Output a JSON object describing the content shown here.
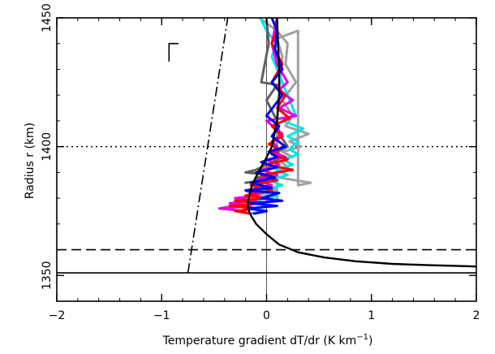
{
  "chart_data": {
    "type": "line",
    "xlabel": "Temperature gradient dT/dr (K km",
    "xlabel_unit_sup": "−1",
    "xlabel_close": ")",
    "ylabel": "Radius r (km)",
    "xlim": [
      -2,
      2
    ],
    "ylim": [
      1340,
      1450
    ],
    "x_ticks": [
      -2,
      -1,
      0,
      1,
      2
    ],
    "x_tick_labels": [
      "−2",
      "−1",
      "0",
      "1",
      "2"
    ],
    "y_ticks": [
      1350,
      1400,
      1450
    ],
    "y_tick_labels": [
      "1350",
      "1400",
      "1450"
    ],
    "grid": false,
    "legend": "none",
    "reference_lines": [
      {
        "name": "vertical-zero",
        "orientation": "vertical",
        "x": 0,
        "style": "solid",
        "color": "#555555"
      },
      {
        "name": "horizontal-1400",
        "orientation": "horizontal",
        "y": 1400,
        "style": "dotted",
        "color": "#000000"
      },
      {
        "name": "horizontal-1360",
        "orientation": "horizontal",
        "y": 1360,
        "style": "dashed",
        "color": "#000000"
      },
      {
        "name": "horizontal-1351",
        "orientation": "horizontal",
        "y": 1351,
        "style": "solid",
        "color": "#000000"
      }
    ],
    "dash_dot_line": {
      "x": [
        -0.75,
        -0.37
      ],
      "y": [
        1351,
        1450
      ],
      "color": "#000000"
    },
    "marker_L": {
      "x": [
        -0.93,
        -0.93,
        -0.84
      ],
      "y": [
        1433,
        1440,
        1440
      ]
    },
    "series": [
      {
        "color": "#a0a0a0",
        "x": [
          -0.07,
          0.1,
          0.2,
          0.18,
          0.28,
          0.15,
          0.25,
          0.18,
          0.4,
          0.22,
          0.33,
          0.15,
          0.25,
          0.12,
          0.2,
          0.08,
          0.12,
          0.42,
          0.3,
          0.3,
          0.1,
          0.15,
          0.1,
          0.1,
          0.08,
          0.04,
          -0.1,
          -0.2,
          -0.28,
          -0.35,
          -0.45
        ],
        "y": [
          1450,
          1445,
          1440,
          1432,
          1425,
          1418,
          1412,
          1408,
          1405,
          1402,
          1400,
          1398,
          1396,
          1395,
          1392,
          1390,
          1388,
          1386,
          1385,
          1445,
          1442,
          1435,
          1410,
          1380,
          1384,
          1382,
          1381,
          1379,
          1378,
          1377,
          1376
        ]
      },
      {
        "color": "#00e6e6",
        "x": [
          -0.06,
          0.0,
          0.1,
          0.05,
          0.15,
          0.22,
          0.28,
          0.15,
          0.35,
          0.2,
          0.3,
          0.22,
          0.3,
          0.15,
          0.25,
          0.1,
          0.2,
          0.02,
          0.15,
          -0.05,
          0.1,
          -0.1,
          0.05,
          -0.12,
          0.0,
          -0.15
        ],
        "y": [
          1450,
          1445,
          1440,
          1435,
          1425,
          1418,
          1412,
          1410,
          1407,
          1404,
          1402,
          1399,
          1397,
          1395,
          1393,
          1391,
          1389,
          1387,
          1385,
          1383,
          1381,
          1379,
          1377,
          1376,
          1375,
          1374
        ]
      },
      {
        "color": "#606060",
        "x": [
          0.0,
          0.02,
          -0.05,
          0.1,
          0.0,
          0.1,
          0.12,
          0.2,
          0.1,
          0.15,
          0.05,
          0.0,
          -0.05,
          -0.1,
          -0.2,
          0.05,
          -0.1,
          0.0,
          -0.2
        ],
        "y": [
          1450,
          1440,
          1425,
          1424,
          1418,
          1410,
          1405,
          1400,
          1398,
          1396,
          1394,
          1393,
          1392,
          1391,
          1390,
          1389,
          1388,
          1387,
          1386
        ]
      },
      {
        "color": "#e600e6",
        "x": [
          0.1,
          0.05,
          0.1,
          0.2,
          0.12,
          0.25,
          0.12,
          0.28,
          0.0,
          0.15,
          0.05,
          0.1,
          0.05,
          0.18,
          0.0,
          0.12,
          -0.05,
          0.1,
          -0.1,
          0.05,
          -0.2,
          -0.08,
          -0.3,
          -0.1,
          -0.35,
          -0.15,
          -0.45,
          -0.2
        ],
        "y": [
          1450,
          1440,
          1432,
          1425,
          1422,
          1418,
          1415,
          1412,
          1410,
          1405,
          1402,
          1400,
          1398,
          1396,
          1395,
          1393,
          1391,
          1389,
          1387,
          1385,
          1383,
          1381,
          1380,
          1379,
          1378,
          1377,
          1376,
          1375
        ]
      },
      {
        "color": "#ff0000",
        "x": [
          0.05,
          0.1,
          0.05,
          0.15,
          0.05,
          0.18,
          0.1,
          0.22,
          0.05,
          0.15,
          0.02,
          0.12,
          0.05,
          0.2,
          0.0,
          0.25,
          -0.05,
          0.1,
          -0.15,
          0.05,
          -0.2,
          0.02,
          -0.3,
          -0.05,
          -0.35,
          -0.1,
          -0.3,
          -0.15
        ],
        "y": [
          1450,
          1445,
          1440,
          1432,
          1425,
          1420,
          1415,
          1411,
          1408,
          1404,
          1401,
          1399,
          1397,
          1395,
          1393,
          1391,
          1389,
          1387,
          1385,
          1383,
          1381,
          1380,
          1379,
          1378,
          1377,
          1376,
          1375,
          1374
        ]
      },
      {
        "color": "#0000ff",
        "x": [
          0.05,
          0.1,
          0.08,
          0.15,
          0.05,
          0.15,
          0.0,
          0.12,
          0.05,
          0.18,
          0.02,
          0.1,
          -0.05,
          0.1,
          -0.1,
          0.08,
          -0.15,
          0.05,
          -0.2,
          0.12,
          -0.05,
          0.15,
          -0.15,
          0.1,
          -0.18,
          0.0,
          -0.12
        ],
        "y": [
          1450,
          1445,
          1438,
          1430,
          1425,
          1420,
          1412,
          1408,
          1404,
          1400,
          1398,
          1396,
          1394,
          1392,
          1390,
          1388,
          1386,
          1384,
          1383,
          1382,
          1380,
          1379,
          1378,
          1377,
          1376,
          1375,
          1374
        ]
      },
      {
        "color": "#000000",
        "x": [
          0.1,
          0.11,
          0.12,
          0.12,
          0.1,
          0.05,
          -0.01,
          -0.08,
          -0.14,
          -0.17,
          -0.18,
          -0.16,
          -0.1,
          0.0,
          0.12,
          0.3,
          0.55,
          0.85,
          1.2,
          1.55,
          2.0
        ],
        "y": [
          1450,
          1440,
          1430,
          1420,
          1410,
          1400,
          1395,
          1390,
          1385,
          1380,
          1377,
          1374,
          1370,
          1366,
          1362,
          1359,
          1357,
          1355.5,
          1354.5,
          1354,
          1353.5
        ]
      }
    ]
  }
}
